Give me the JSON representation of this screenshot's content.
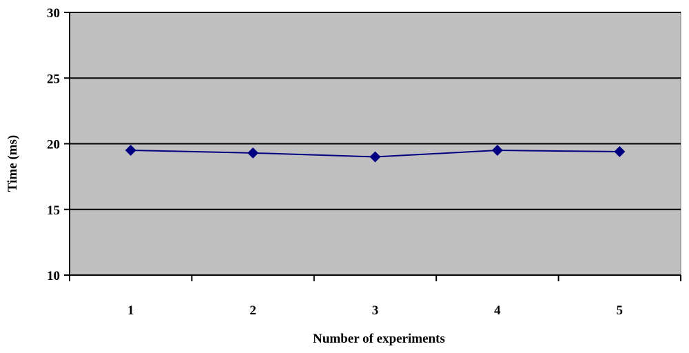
{
  "chart_data": {
    "type": "line",
    "title": "",
    "xlabel": "Number of experiments",
    "ylabel": "Time (ms)",
    "categories": [
      "1",
      "2",
      "3",
      "4",
      "5"
    ],
    "series": [
      {
        "values": [
          19.5,
          19.3,
          19.0,
          19.5,
          19.4
        ]
      }
    ],
    "ylim": [
      10,
      30
    ],
    "yticks": [
      "10",
      "15",
      "20",
      "25",
      "30"
    ],
    "grid": "horizontal",
    "legend": "none",
    "colors": {
      "plot_background": "#C0C0C0",
      "line": "#000080",
      "marker": "#000080",
      "gridline": "#000000"
    }
  }
}
